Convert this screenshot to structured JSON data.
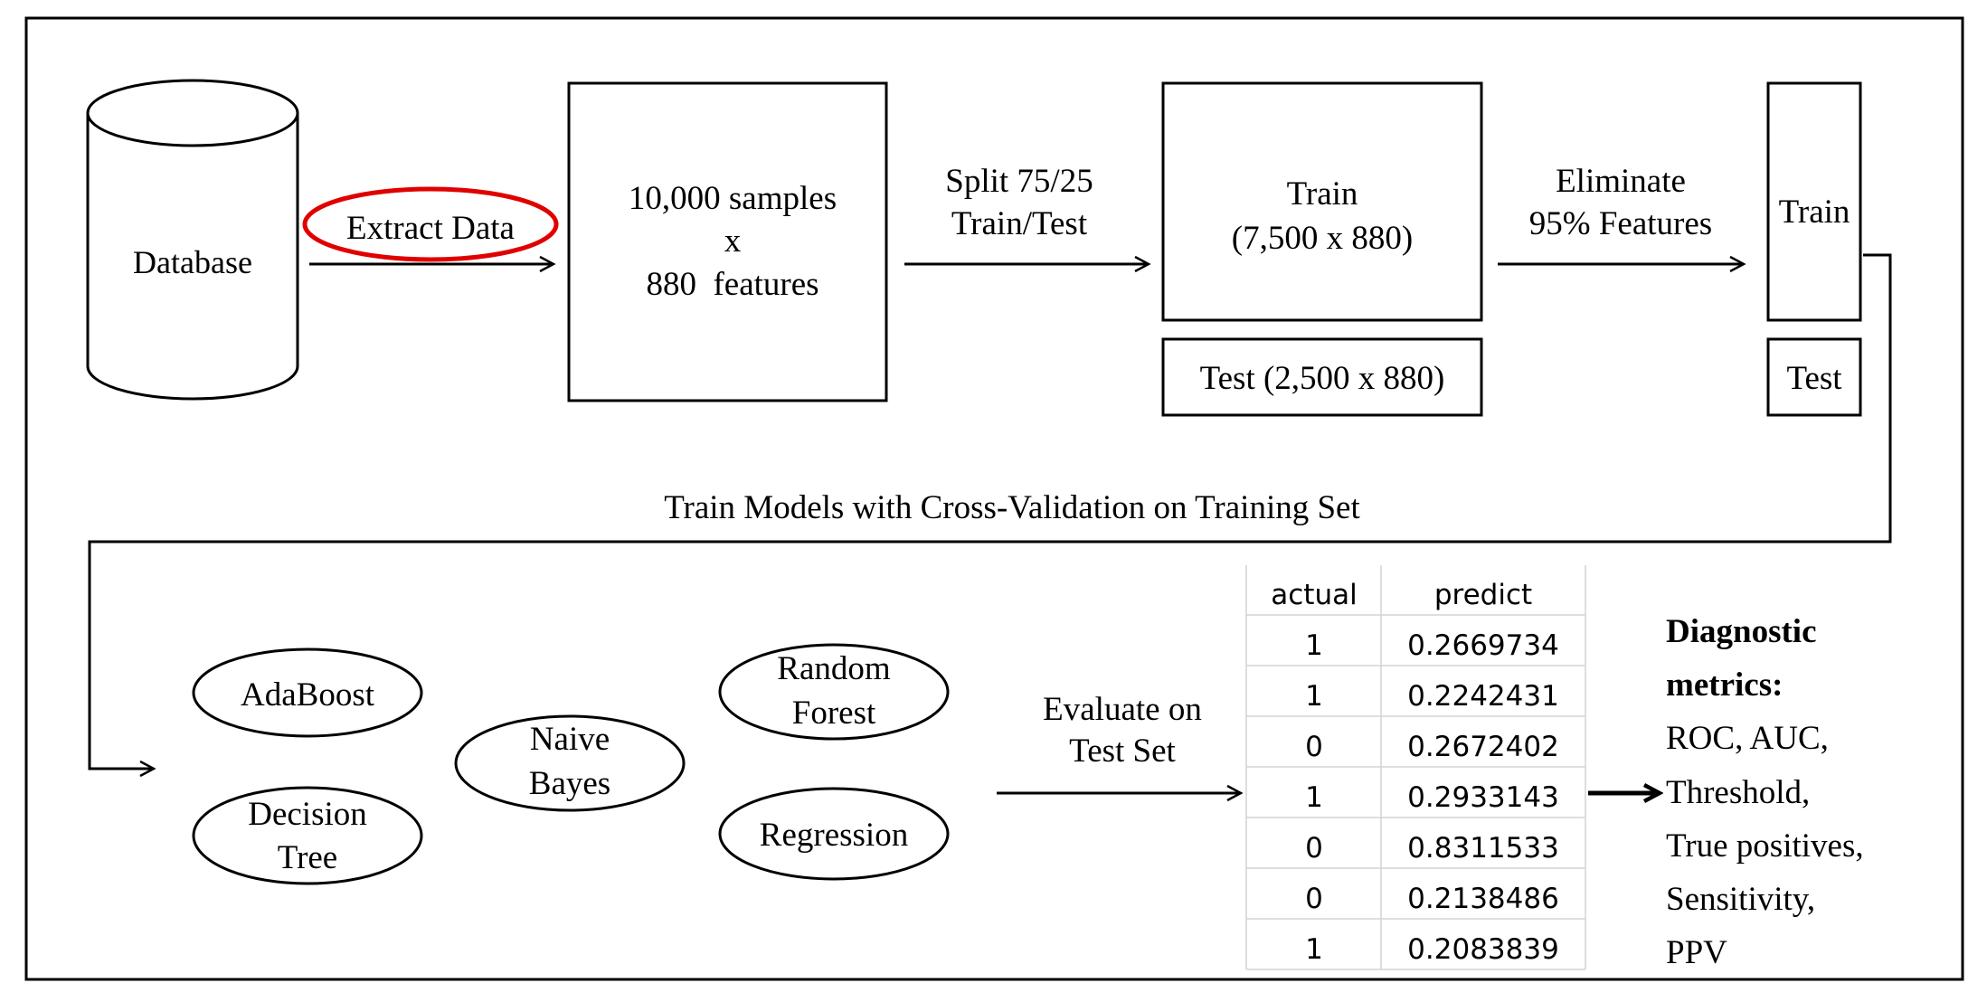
{
  "database": {
    "label": "Database"
  },
  "extract": {
    "label": "Extract Data",
    "highlight_color": "#e00000"
  },
  "samples_box": {
    "line1": "10,000 samples",
    "line2": "x",
    "line3": "880  features"
  },
  "split": {
    "line1": "Split 75/25",
    "line2": "Train/Test"
  },
  "train_box": {
    "line1": "Train",
    "line2": "(7,500 x 880)"
  },
  "test_box": {
    "label": "Test (2,500 x 880)"
  },
  "eliminate": {
    "line1": "Eliminate",
    "line2": "95% Features"
  },
  "train_small": {
    "label": "Train"
  },
  "test_small": {
    "label": "Test"
  },
  "cv_caption": "Train Models with Cross-Validation on Training Set",
  "models": {
    "adaboost": "AdaBoost",
    "decision_tree": {
      "line1": "Decision",
      "line2": "Tree"
    },
    "naive_bayes": {
      "line1": "Naive",
      "line2": "Bayes"
    },
    "random_forest": {
      "line1": "Random",
      "line2": "Forest"
    },
    "regression": "Regression"
  },
  "evaluate": {
    "line1": "Evaluate on",
    "line2": "Test Set"
  },
  "results_table": {
    "headers": [
      "actual",
      "predict"
    ],
    "rows": [
      [
        "1",
        "0.2669734"
      ],
      [
        "1",
        "0.2242431"
      ],
      [
        "0",
        "0.2672402"
      ],
      [
        "1",
        "0.2933143"
      ],
      [
        "0",
        "0.8311533"
      ],
      [
        "0",
        "0.2138486"
      ],
      [
        "1",
        "0.2083839"
      ]
    ]
  },
  "metrics": {
    "title1": "Diagnostic",
    "title2": "metrics:",
    "items": [
      "ROC, AUC,",
      "Threshold,",
      "True positives,",
      "Sensitivity,",
      "PPV"
    ]
  }
}
